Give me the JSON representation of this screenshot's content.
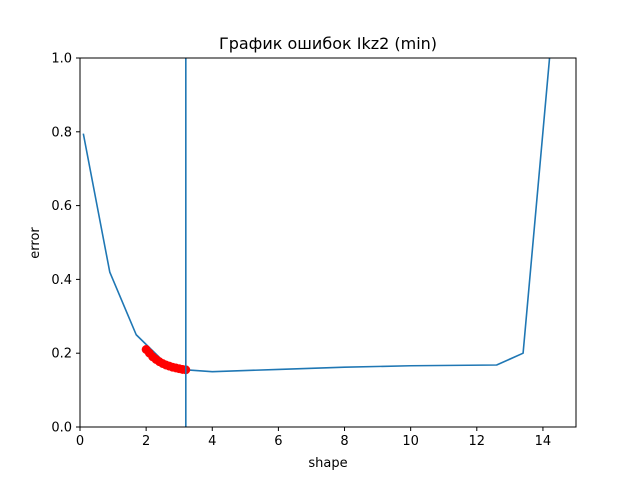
{
  "chart_data": {
    "type": "line",
    "title": "График ошибок Ikz2 (min)",
    "xlabel": "shape",
    "ylabel": "error",
    "xlim": [
      0,
      15
    ],
    "ylim": [
      0,
      1.0
    ],
    "x_ticks": [
      0,
      2,
      4,
      6,
      8,
      10,
      12,
      14
    ],
    "x_tick_labels": [
      "0",
      "2",
      "4",
      "6",
      "8",
      "10",
      "12",
      "14"
    ],
    "y_ticks": [
      0.0,
      0.2,
      0.4,
      0.6,
      0.8,
      1.0
    ],
    "y_tick_labels": [
      "0.0",
      "0.2",
      "0.4",
      "0.6",
      "0.8",
      "1.0"
    ],
    "grid": false,
    "line_color": "#1f77b4",
    "marker_color": "#ff0000",
    "series": [
      {
        "type": "line",
        "x": [
          0.1,
          0.9,
          1.7,
          2.5,
          3.2,
          4.0,
          6.0,
          8.0,
          10.0,
          12.6,
          13.4,
          14.2
        ],
        "y": [
          0.795,
          0.42,
          0.25,
          0.18,
          0.155,
          0.15,
          0.156,
          0.162,
          0.166,
          0.168,
          0.2,
          1.0
        ]
      },
      {
        "type": "scatter",
        "x": [
          2.0,
          2.1,
          2.2,
          2.3,
          2.4,
          2.5,
          2.6,
          2.7,
          2.8,
          2.9,
          3.0,
          3.1,
          3.2
        ],
        "y": [
          0.21,
          0.2,
          0.19,
          0.183,
          0.177,
          0.172,
          0.168,
          0.165,
          0.162,
          0.16,
          0.158,
          0.156,
          0.155
        ]
      },
      {
        "type": "vline",
        "x": 3.2
      }
    ]
  }
}
